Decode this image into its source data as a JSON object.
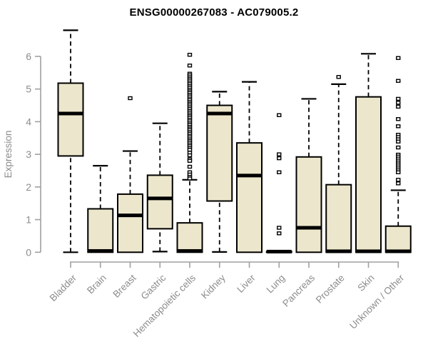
{
  "chart_data": {
    "type": "boxplot",
    "title": "ENSG00000267083 - AC079005.2",
    "ylabel": "Expression",
    "yticks": [
      0,
      1,
      2,
      3,
      4,
      5,
      6
    ],
    "ylim": [
      0,
      6.9
    ],
    "grid": false,
    "categories": [
      "Bladder",
      "Brain",
      "Breast",
      "Gastric",
      "Hematopoietic cells",
      "Kidney",
      "Liver",
      "Lung",
      "Pancreas",
      "Prostate",
      "Skin",
      "Unknown / Other"
    ],
    "boxes": [
      {
        "category": "Bladder",
        "low": 0,
        "q1": 2.95,
        "median": 4.25,
        "q3": 5.18,
        "high": 6.8,
        "outliers": []
      },
      {
        "category": "Brain",
        "low": 0,
        "q1": 0,
        "median": 0.04,
        "q3": 1.33,
        "high": 2.65,
        "outliers": []
      },
      {
        "category": "Breast",
        "low": 0,
        "q1": 0,
        "median": 1.13,
        "q3": 1.78,
        "high": 3.1,
        "outliers": [
          4.72
        ]
      },
      {
        "category": "Gastric",
        "low": 0.02,
        "q1": 0.72,
        "median": 1.65,
        "q3": 2.36,
        "high": 3.95,
        "outliers": []
      },
      {
        "category": "Hematopoietic cells",
        "low": 0,
        "q1": 0,
        "median": 0.04,
        "q3": 0.9,
        "high": 2.22,
        "outliers": [
          6.05,
          5.72,
          5.47,
          5.42,
          5.36,
          5.31,
          5.26,
          5.2,
          5.15,
          5.09,
          5.04,
          4.98,
          4.93,
          4.88,
          4.82,
          4.77,
          4.71,
          4.66,
          4.6,
          4.55,
          4.5,
          4.44,
          4.39,
          4.33,
          4.28,
          4.22,
          4.17,
          4.12,
          4.06,
          4.01,
          3.95,
          3.9,
          3.84,
          3.79,
          3.74,
          3.68,
          3.63,
          3.57,
          3.52,
          3.46,
          3.41,
          3.36,
          3.3,
          3.25,
          3.19,
          3.14,
          3.05,
          2.97,
          2.85,
          2.8,
          2.62,
          2.45,
          2.38,
          2.31,
          2.26
        ]
      },
      {
        "category": "Kidney",
        "low": 0.01,
        "q1": 1.57,
        "median": 4.25,
        "q3": 4.5,
        "high": 4.92,
        "outliers": []
      },
      {
        "category": "Liver",
        "low": 0,
        "q1": 0,
        "median": 2.35,
        "q3": 3.35,
        "high": 5.22,
        "outliers": []
      },
      {
        "category": "Lung",
        "low": 0,
        "q1": 0,
        "median": 0.02,
        "q3": 0.02,
        "high": 0.02,
        "outliers": [
          4.2,
          3.0,
          2.88,
          2.45,
          0.75,
          0.58
        ]
      },
      {
        "category": "Pancreas",
        "low": 0,
        "q1": 0,
        "median": 0.75,
        "q3": 2.92,
        "high": 4.7,
        "outliers": []
      },
      {
        "category": "Prostate",
        "low": 0,
        "q1": 0,
        "median": 0.03,
        "q3": 2.07,
        "high": 5.15,
        "outliers": [
          5.37
        ]
      },
      {
        "category": "Skin",
        "low": 0,
        "q1": 0,
        "median": 0.03,
        "q3": 4.76,
        "high": 6.08,
        "outliers": []
      },
      {
        "category": "Unknown / Other",
        "low": 0,
        "q1": 0,
        "median": 0.03,
        "q3": 0.8,
        "high": 1.9,
        "outliers": [
          5.95,
          5.25,
          4.7,
          4.58,
          4.46,
          4.08,
          3.86,
          3.6,
          3.53,
          3.46,
          3.39,
          3.21,
          2.99,
          2.93,
          2.87,
          2.81,
          2.75,
          2.69,
          2.63,
          2.57,
          2.51,
          2.45,
          2.22,
          2.11
        ]
      }
    ],
    "colors": {
      "box_fill": "#ECE7CC",
      "box_stroke": "#000000",
      "median": "#000000",
      "whisker": "#000000",
      "axis_line": "#a0a0a0",
      "axis_text": "#8c8c8c",
      "title": "#000000",
      "outlier_fill": "#ffffff"
    }
  }
}
